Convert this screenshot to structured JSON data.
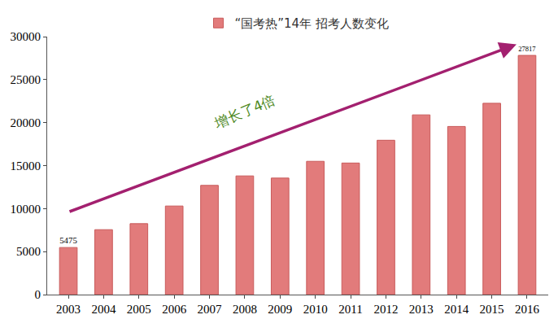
{
  "chart_data": {
    "type": "bar",
    "categories": [
      "2003",
      "2004",
      "2005",
      "2006",
      "2007",
      "2008",
      "2009",
      "2010",
      "2011",
      "2012",
      "2013",
      "2014",
      "2015",
      "2016"
    ],
    "series": [
      {
        "name": "“国考热”14年 招考人数变化",
        "color": "#e27b7b",
        "values": [
          5475,
          7550,
          8250,
          10300,
          12700,
          13800,
          13550,
          15500,
          15300,
          17950,
          20900,
          19550,
          22250,
          27817
        ],
        "value_labels": [
          "5475",
          null,
          null,
          null,
          null,
          null,
          null,
          null,
          null,
          null,
          null,
          null,
          null,
          "27817"
        ]
      }
    ],
    "ylim": [
      0,
      30000
    ],
    "yticks": [
      0,
      5000,
      10000,
      15000,
      20000,
      25000,
      30000
    ],
    "grid": false,
    "legend": "top",
    "annotations": [
      "增长了4倍"
    ]
  }
}
